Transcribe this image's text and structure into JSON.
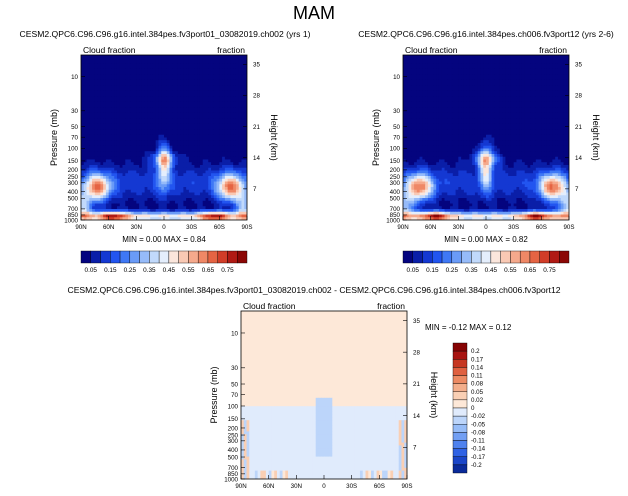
{
  "page": {
    "title": "MAM"
  },
  "chart_data": [
    {
      "type": "heatmap",
      "title": "CESM2.QPC6.C96.C96.g16.intel.384pes.fv3port01_03082019.ch002 (yrs 1)",
      "left_label": "Cloud fraction",
      "right_label": "fraction",
      "xlabel": "",
      "ylabel": "Pressure (mb)",
      "ylabel_right": "Height (km)",
      "x_ticks": [
        "90N",
        "60N",
        "30N",
        "0",
        "30S",
        "60S",
        "90S"
      ],
      "xlim": [
        90,
        -90
      ],
      "y_ticks": [
        10,
        30,
        50,
        70,
        100,
        150,
        200,
        250,
        300,
        400,
        500,
        700,
        850,
        1000
      ],
      "ylim": [
        1000,
        5
      ],
      "height_ticks": [
        35,
        28,
        21,
        14,
        7
      ],
      "stats": "MIN =   0.00  MAX =   0.84",
      "colorbar_labels": [
        "0.05",
        "0.15",
        "0.25",
        "0.35",
        "0.45",
        "0.55",
        "0.65",
        "0.75"
      ],
      "colorbar_levels": [
        0,
        0.05,
        0.1,
        0.15,
        0.2,
        0.25,
        0.3,
        0.35,
        0.4,
        0.45,
        0.5,
        0.55,
        0.6,
        0.65,
        0.7,
        0.75,
        0.8
      ],
      "colors": [
        "#04047f",
        "#0a1ea8",
        "#1438d2",
        "#2255f0",
        "#3f78f5",
        "#6a9bf7",
        "#96bbf9",
        "#c1d9fb",
        "#e4eefc",
        "#fbe6dc",
        "#f9c9b4",
        "#f5a98c",
        "#ef8866",
        "#e56443",
        "#d13d28",
        "#b01a14",
        "#8b0705"
      ],
      "max_value": 0.84
    },
    {
      "type": "heatmap",
      "title": "CESM2.QPC6.C96.C96.g16.intel.384pes.ch006.fv3port12 (yrs 2-6)",
      "left_label": "Cloud fraction",
      "right_label": "fraction",
      "xlabel": "",
      "ylabel": "Pressure (mb)",
      "ylabel_right": "Height (km)",
      "x_ticks": [
        "90N",
        "60N",
        "30N",
        "0",
        "30S",
        "60S",
        "90S"
      ],
      "xlim": [
        90,
        -90
      ],
      "y_ticks": [
        10,
        30,
        50,
        70,
        100,
        150,
        200,
        250,
        300,
        400,
        500,
        700,
        850,
        1000
      ],
      "ylim": [
        1000,
        5
      ],
      "height_ticks": [
        35,
        28,
        21,
        14,
        7
      ],
      "stats": "MIN =   0.00  MAX =   0.82",
      "colorbar_labels": [
        "0.05",
        "0.15",
        "0.25",
        "0.35",
        "0.45",
        "0.55",
        "0.65",
        "0.75"
      ],
      "colorbar_levels": [
        0,
        0.05,
        0.1,
        0.15,
        0.2,
        0.25,
        0.3,
        0.35,
        0.4,
        0.45,
        0.5,
        0.55,
        0.6,
        0.65,
        0.7,
        0.75,
        0.8
      ],
      "colors": [
        "#04047f",
        "#0a1ea8",
        "#1438d2",
        "#2255f0",
        "#3f78f5",
        "#6a9bf7",
        "#96bbf9",
        "#c1d9fb",
        "#e4eefc",
        "#fbe6dc",
        "#f9c9b4",
        "#f5a98c",
        "#ef8866",
        "#e56443",
        "#d13d28",
        "#b01a14",
        "#8b0705"
      ],
      "max_value": 0.82
    },
    {
      "type": "heatmap",
      "title": "CESM2.QPC6.C96.C96.g16.intel.384pes.fv3port01_03082019.ch002 - CESM2.QPC6.C96.C96.g16.intel.384pes.ch006.fv3port12",
      "left_label": "Cloud fraction",
      "right_label": "fraction",
      "xlabel": "",
      "ylabel": "Pressure (mb)",
      "ylabel_right": "Height (km)",
      "x_ticks": [
        "90N",
        "60N",
        "30N",
        "0",
        "30S",
        "60S",
        "90S"
      ],
      "xlim": [
        90,
        -90
      ],
      "y_ticks": [
        10,
        30,
        50,
        70,
        100,
        150,
        200,
        250,
        300,
        400,
        500,
        700,
        850,
        1000
      ],
      "ylim": [
        1000,
        5
      ],
      "height_ticks": [
        35,
        28,
        21,
        14,
        7
      ],
      "stats": "MIN =  -0.12  MAX =   0.12",
      "colorbar_labels": [
        "0.2",
        "0.17",
        "0.14",
        "0.11",
        "0.08",
        "0.05",
        "0.02",
        "0",
        "-0.02",
        "-0.05",
        "-0.08",
        "-0.11",
        "-0.14",
        "-0.17",
        "-0.2"
      ],
      "colorbar_levels": [
        -0.2,
        -0.17,
        -0.14,
        -0.11,
        -0.08,
        -0.05,
        -0.02,
        0,
        0.02,
        0.05,
        0.08,
        0.11,
        0.14,
        0.17,
        0.2
      ],
      "colors": [
        "#0a2a9a",
        "#1a45c8",
        "#2f62e4",
        "#4f82ee",
        "#729ff3",
        "#96bcf7",
        "#bcd5fa",
        "#e0ebfc",
        "#fde8d8",
        "#f9cfb4",
        "#f3ae8b",
        "#ec8a63",
        "#df6040",
        "#c63722",
        "#a81410",
        "#860404"
      ],
      "max_value": 0.12
    }
  ]
}
